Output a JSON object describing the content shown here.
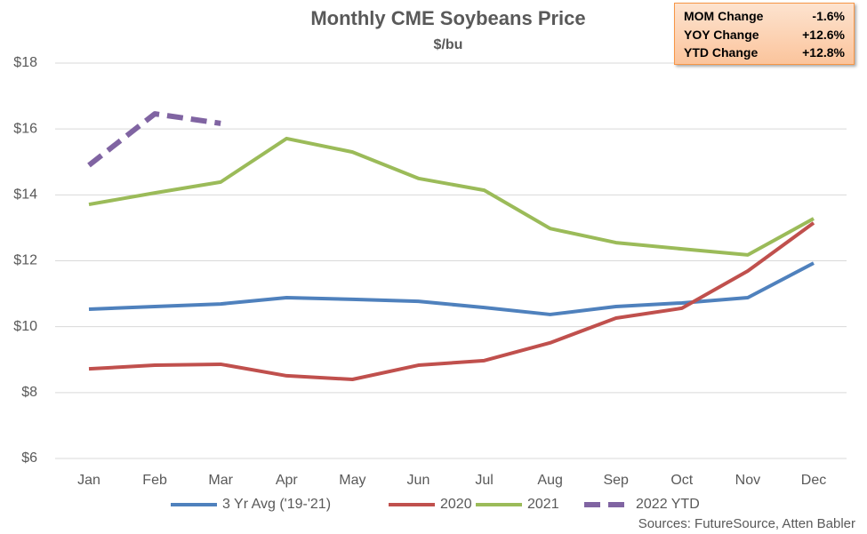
{
  "chart_data": {
    "type": "line",
    "title": "Monthly CME Soybeans Price",
    "subtitle": "$/bu",
    "categories": [
      "Jan",
      "Feb",
      "Mar",
      "Apr",
      "May",
      "Jun",
      "Jul",
      "Aug",
      "Sep",
      "Oct",
      "Nov",
      "Dec"
    ],
    "series": [
      {
        "name": "3 Yr Avg ('19-'21)",
        "color": "#4f81bd",
        "values": [
          10.53,
          10.61,
          10.69,
          10.88,
          10.83,
          10.77,
          10.58,
          10.37,
          10.61,
          10.72,
          10.88,
          11.93
        ]
      },
      {
        "name": "2020",
        "color": "#c0504d",
        "values": [
          8.72,
          8.83,
          8.86,
          8.51,
          8.4,
          8.83,
          8.97,
          9.51,
          10.26,
          10.56,
          11.69,
          13.15
        ]
      },
      {
        "name": "2021",
        "color": "#9bbb59",
        "values": [
          13.71,
          14.06,
          14.39,
          15.71,
          15.3,
          14.5,
          14.14,
          12.98,
          12.55,
          12.36,
          12.18,
          13.28
        ]
      },
      {
        "name": "2022 YTD",
        "color": "#8064a2",
        "dashed": true,
        "values": [
          14.9,
          16.46,
          16.17,
          null,
          null,
          null,
          null,
          null,
          null,
          null,
          null,
          null
        ]
      }
    ],
    "ylim": [
      6,
      18
    ],
    "yticks": [
      {
        "value": 6,
        "label": "$6"
      },
      {
        "value": 8,
        "label": "$8"
      },
      {
        "value": 10,
        "label": "$10"
      },
      {
        "value": 12,
        "label": "$12"
      },
      {
        "value": 14,
        "label": "$14"
      },
      {
        "value": 16,
        "label": "$16"
      },
      {
        "value": 18,
        "label": "$18"
      }
    ],
    "grid": true,
    "legend": "bottom",
    "summary": [
      {
        "label": "MOM Change",
        "value": "-1.6%"
      },
      {
        "label": "YOY Change",
        "value": "+12.6%"
      },
      {
        "label": "YTD Change",
        "value": "+12.8%"
      }
    ],
    "source": "Sources: FutureSource, Atten Babler"
  }
}
